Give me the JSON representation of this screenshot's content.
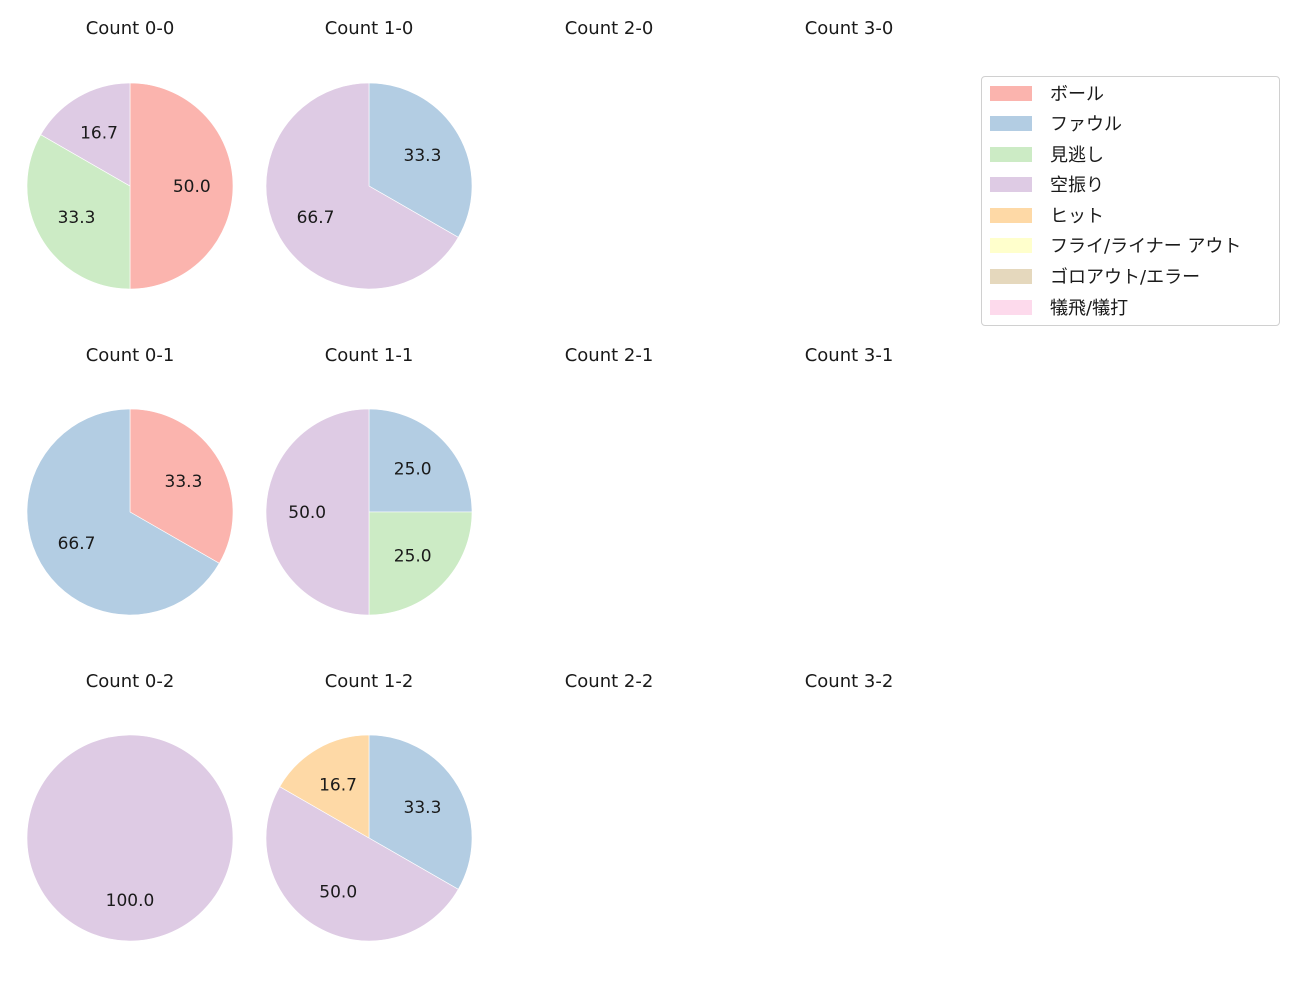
{
  "chart_data": {
    "type": "pie",
    "layout": {
      "rows": 3,
      "cols": 4,
      "legend_position": "upper right"
    },
    "legend": [
      {
        "label": "ボール",
        "color": "#fbb4ae"
      },
      {
        "label": "ファウル",
        "color": "#b3cde3"
      },
      {
        "label": "見逃し",
        "color": "#ccebc5"
      },
      {
        "label": "空振り",
        "color": "#decbe4"
      },
      {
        "label": "ヒット",
        "color": "#fed9a6"
      },
      {
        "label": "フライ/ライナー アウト",
        "color": "#ffffcc"
      },
      {
        "label": "ゴロアウト/エラー",
        "color": "#e5d8bd"
      },
      {
        "label": "犠飛/犠打",
        "color": "#fddaec"
      }
    ],
    "subplots": [
      {
        "title": "Count 0-0",
        "slices": [
          {
            "label": "ボール",
            "value": 50.0
          },
          {
            "label": "見逃し",
            "value": 33.3
          },
          {
            "label": "空振り",
            "value": 16.7
          }
        ]
      },
      {
        "title": "Count 1-0",
        "slices": [
          {
            "label": "ファウル",
            "value": 33.3
          },
          {
            "label": "空振り",
            "value": 66.7
          }
        ]
      },
      {
        "title": "Count 2-0",
        "slices": []
      },
      {
        "title": "Count 3-0",
        "slices": []
      },
      {
        "title": "Count 0-1",
        "slices": [
          {
            "label": "ボール",
            "value": 33.3
          },
          {
            "label": "ファウル",
            "value": 66.7
          }
        ]
      },
      {
        "title": "Count 1-1",
        "slices": [
          {
            "label": "ファウル",
            "value": 25.0
          },
          {
            "label": "見逃し",
            "value": 25.0
          },
          {
            "label": "空振り",
            "value": 50.0
          }
        ]
      },
      {
        "title": "Count 2-1",
        "slices": []
      },
      {
        "title": "Count 3-1",
        "slices": []
      },
      {
        "title": "Count 0-2",
        "slices": [
          {
            "label": "空振り",
            "value": 100.0
          }
        ]
      },
      {
        "title": "Count 1-2",
        "slices": [
          {
            "label": "ファウル",
            "value": 33.3
          },
          {
            "label": "空振り",
            "value": 50.0
          },
          {
            "label": "ヒット",
            "value": 16.7
          }
        ]
      },
      {
        "title": "Count 2-2",
        "slices": []
      },
      {
        "title": "Count 3-2",
        "slices": []
      }
    ]
  }
}
